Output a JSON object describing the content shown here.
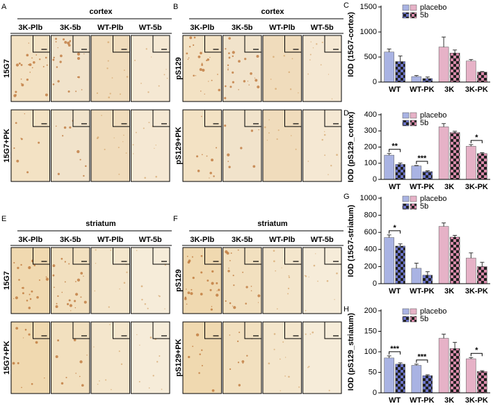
{
  "image_panels": [
    {
      "label": "A",
      "title": "cortex",
      "columns": [
        "3K-Plb",
        "3K-5b",
        "WT-Plb",
        "WT-5b"
      ],
      "rows": [
        "15G7",
        "15G7+PK"
      ]
    },
    {
      "label": "B",
      "title": "cortex",
      "columns": [
        "3K-Plb",
        "3K-5b",
        "WT-Plb",
        "WT-5b"
      ],
      "rows": [
        "pS129",
        "pS129+PK"
      ]
    },
    {
      "label": "E",
      "title": "striatum",
      "columns": [
        "3K-Plb",
        "3K-5b",
        "WT-Plb",
        "WT-5b"
      ],
      "rows": [
        "15G7",
        "15G7+PK"
      ]
    },
    {
      "label": "F",
      "title": "striatum",
      "columns": [
        "3K-Plb",
        "3K-5b",
        "WT-Plb",
        "WT-5b"
      ],
      "rows": [
        "pS129",
        "pS129+PK"
      ]
    }
  ],
  "chart_data": [
    {
      "type": "bar",
      "panel": "C",
      "ylabel": "IOD (15G7-cortex)",
      "categories": [
        "WT",
        "WT-PK",
        "3K",
        "3K-PK"
      ],
      "series": [
        {
          "name": "placebo",
          "color": [
            "#a9b3e3",
            "#a9b3e3",
            "#e6b2c7",
            "#e6b2c7"
          ],
          "values": [
            600,
            110,
            700,
            420
          ],
          "errors": [
            60,
            20,
            200,
            30
          ]
        },
        {
          "name": "5b",
          "color": [
            "#6b74c9",
            "#6b74c9",
            "#d889a9",
            "#d889a9"
          ],
          "pattern": "checker",
          "values": [
            410,
            70,
            580,
            200
          ],
          "errors": [
            110,
            30,
            60,
            10
          ]
        }
      ],
      "ylim": [
        0,
        1500
      ],
      "yticks": [
        0,
        500,
        1000,
        1500
      ],
      "annotations": []
    },
    {
      "type": "bar",
      "panel": "D",
      "ylabel": "IOD (pS129_cortex)",
      "categories": [
        "WT",
        "WT-PK",
        "3K",
        "3K-PK"
      ],
      "series": [
        {
          "name": "placebo",
          "color": [
            "#a9b3e3",
            "#a9b3e3",
            "#e6b2c7",
            "#e6b2c7"
          ],
          "values": [
            150,
            83,
            325,
            205
          ],
          "errors": [
            10,
            3,
            20,
            10
          ]
        },
        {
          "name": "5b",
          "color": [
            "#6b74c9",
            "#6b74c9",
            "#d889a9",
            "#d889a9"
          ],
          "pattern": "checker",
          "values": [
            93,
            48,
            290,
            160
          ],
          "errors": [
            8,
            5,
            8,
            5
          ]
        }
      ],
      "ylim": [
        0,
        400
      ],
      "yticks": [
        0,
        100,
        200,
        300,
        400
      ],
      "annotations": [
        {
          "category": "WT",
          "text": "**"
        },
        {
          "category": "WT-PK",
          "text": "***"
        },
        {
          "category": "3K-PK",
          "text": "*"
        }
      ]
    },
    {
      "type": "bar",
      "panel": "G",
      "ylabel": "IOD (15G7-striatum)",
      "categories": [
        "WT",
        "WT-PK",
        "3K",
        "3K-PK"
      ],
      "series": [
        {
          "name": "placebo",
          "color": [
            "#a9b3e3",
            "#a9b3e3",
            "#e6b2c7",
            "#e6b2c7"
          ],
          "values": [
            540,
            180,
            670,
            300
          ],
          "errors": [
            30,
            60,
            40,
            60
          ]
        },
        {
          "name": "5b",
          "color": [
            "#6b74c9",
            "#6b74c9",
            "#d889a9",
            "#d889a9"
          ],
          "pattern": "checker",
          "values": [
            440,
            100,
            545,
            200
          ],
          "errors": [
            25,
            40,
            20,
            50
          ]
        }
      ],
      "ylim": [
        0,
        1000
      ],
      "yticks": [
        0,
        200,
        400,
        600,
        800,
        1000
      ],
      "annotations": [
        {
          "category": "WT",
          "text": "*"
        }
      ]
    },
    {
      "type": "bar",
      "panel": "H",
      "ylabel": "IOD (pS129_striatum)",
      "categories": [
        "WT",
        "WT-PK",
        "3K",
        "3K-PK"
      ],
      "series": [
        {
          "name": "placebo",
          "color": [
            "#a9b3e3",
            "#a9b3e3",
            "#e6b2c7",
            "#e6b2c7"
          ],
          "values": [
            85,
            67,
            133,
            83
          ],
          "errors": [
            5,
            3,
            10,
            3
          ]
        },
        {
          "name": "5b",
          "color": [
            "#6b74c9",
            "#6b74c9",
            "#d889a9",
            "#d889a9"
          ],
          "pattern": "checker",
          "values": [
            70,
            42,
            108,
            52
          ],
          "errors": [
            3,
            2,
            15,
            2
          ]
        }
      ],
      "ylim": [
        0,
        200
      ],
      "yticks": [
        0,
        50,
        100,
        150,
        200
      ],
      "annotations": [
        {
          "category": "WT",
          "text": "***"
        },
        {
          "category": "WT-PK",
          "text": "***"
        },
        {
          "category": "3K-PK",
          "text": "*"
        }
      ]
    }
  ]
}
